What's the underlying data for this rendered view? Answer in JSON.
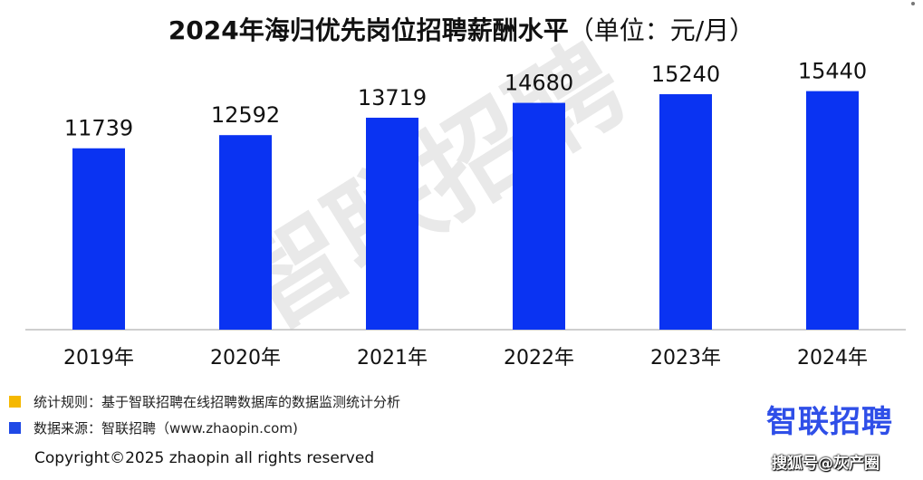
{
  "title": "2024年海归优先岗位招聘薪酬水平",
  "unit_label": "（单位：元/月）",
  "watermark_text": "智联招聘",
  "chart_data": {
    "type": "bar",
    "title": "2024年海归优先岗位招聘薪酬水平（单位：元/月）",
    "categories": [
      "2019年",
      "2020年",
      "2021年",
      "2022年",
      "2023年",
      "2024年"
    ],
    "values": [
      11739,
      12592,
      13719,
      14680,
      15240,
      15440
    ],
    "ylim": [
      0,
      17000
    ],
    "bar_color": "#0a33f2",
    "grid": false,
    "xlabel": "",
    "ylabel": ""
  },
  "legend": [
    {
      "color": "#f5b800",
      "text": "统计规则：基于智联招聘在线招聘数据库的数据监测统计分析"
    },
    {
      "color": "#1f49e6",
      "text": "数据来源：智联招聘（www.zhaopin.com)"
    }
  ],
  "logo_text": "智联招聘",
  "logo_color": "#2f4fe8",
  "copyright": "Copyright©2025 zhaopin all rights reserved",
  "source_tag": "搜狐号@灰产圈"
}
